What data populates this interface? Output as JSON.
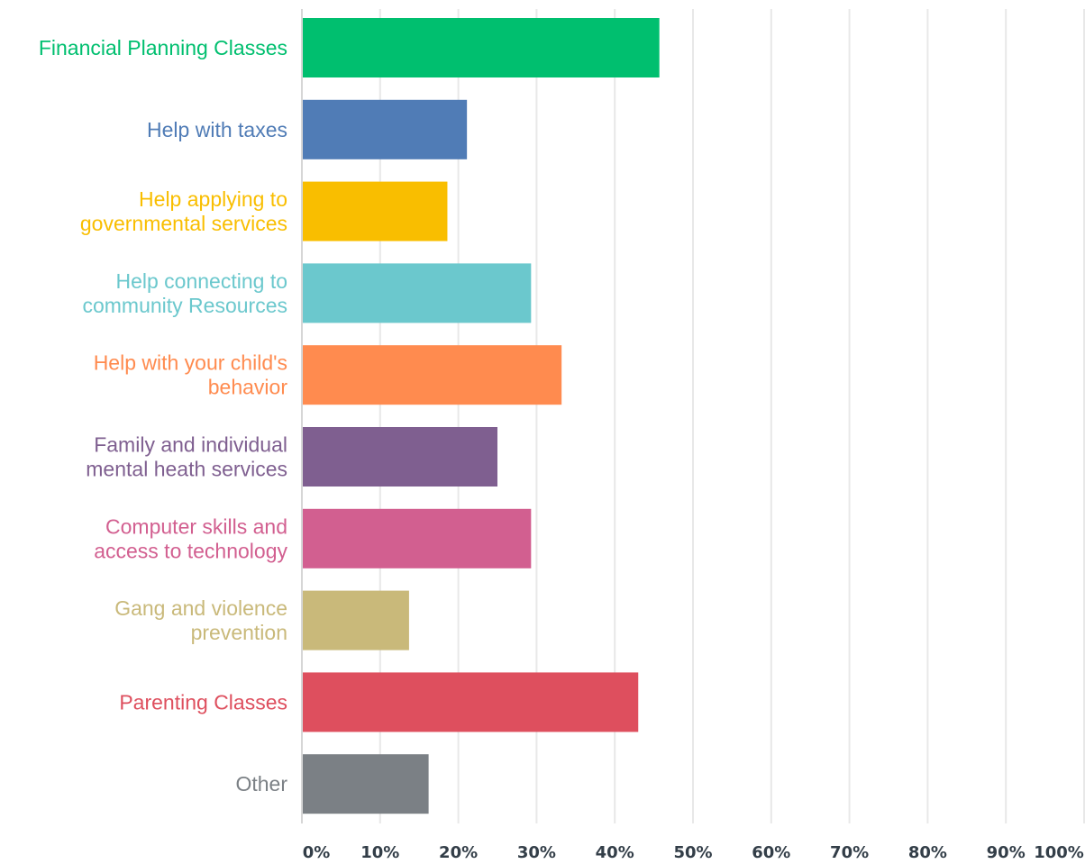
{
  "chart_data": {
    "type": "bar",
    "orientation": "horizontal",
    "title": "",
    "xlabel": "",
    "ylabel": "",
    "xlim": [
      0,
      100
    ],
    "grid": true,
    "legend": "none",
    "categories": [
      [
        "Financial Planning Classes"
      ],
      [
        "Help with taxes"
      ],
      [
        "Help applying to",
        "governmental services"
      ],
      [
        "Help connecting to",
        "community Resources"
      ],
      [
        "Help with your child's",
        "behavior"
      ],
      [
        "Family and individual",
        "mental heath services"
      ],
      [
        "Computer skills and",
        "access to technology"
      ],
      [
        "Gang and violence",
        "prevention"
      ],
      [
        "Parenting Classes"
      ],
      [
        "Other"
      ]
    ],
    "values": [
      45.7,
      21.1,
      18.6,
      29.3,
      33.2,
      25.0,
      29.3,
      13.7,
      43.0,
      16.2
    ],
    "colors": [
      "#00bf6f",
      "#507cb6",
      "#f9be00",
      "#6bc8cd",
      "#ff8b4f",
      "#7f5f90",
      "#d25f90",
      "#c9b97a",
      "#de4f5e",
      "#7b8085"
    ],
    "ticks": [
      "0%",
      "10%",
      "20%",
      "30%",
      "40%",
      "50%",
      "60%",
      "70%",
      "80%",
      "90%",
      "100%"
    ]
  }
}
